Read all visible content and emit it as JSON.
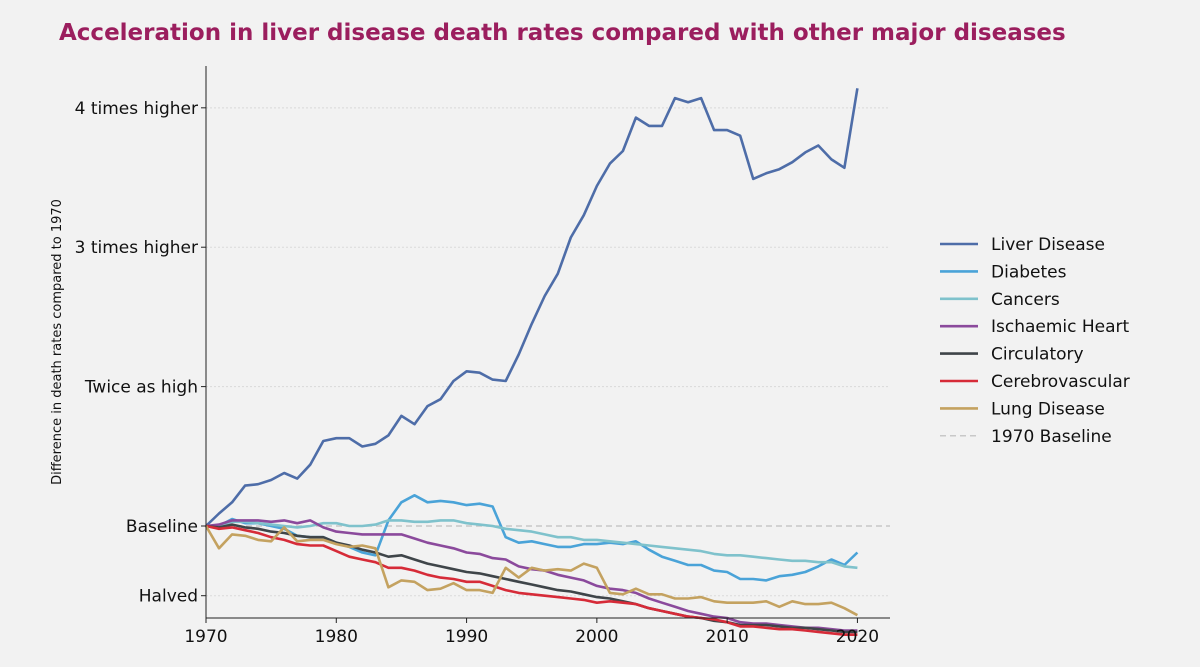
{
  "chart_data": {
    "type": "line",
    "title": "Acceleration in liver disease death rates compared with other major diseases",
    "xlabel": "",
    "ylabel": "Difference in death rates compared to 1970",
    "xlim": [
      1970,
      2022.5
    ],
    "ylim": [
      0.34,
      4.3
    ],
    "x_ticks": [
      1970,
      1980,
      1990,
      2000,
      2010,
      2020
    ],
    "y_ticks": [
      {
        "value": 0.5,
        "label": "Halved"
      },
      {
        "value": 1,
        "label": "Baseline"
      },
      {
        "value": 2,
        "label": "Twice as high"
      },
      {
        "value": 3,
        "label": "3 times higher"
      },
      {
        "value": 4,
        "label": "4 times higher"
      }
    ],
    "grid": "horizontal dotted",
    "legend_position": "right",
    "x": [
      1970,
      1971,
      1972,
      1973,
      1974,
      1975,
      1976,
      1977,
      1978,
      1979,
      1980,
      1981,
      1982,
      1983,
      1984,
      1985,
      1986,
      1987,
      1988,
      1989,
      1990,
      1991,
      1992,
      1993,
      1994,
      1995,
      1996,
      1997,
      1998,
      1999,
      2000,
      2001,
      2002,
      2003,
      2004,
      2005,
      2006,
      2007,
      2008,
      2009,
      2010,
      2011,
      2012,
      2013,
      2014,
      2015,
      2016,
      2017,
      2018,
      2019,
      2020
    ],
    "series": [
      {
        "name": "Liver Disease",
        "color": "#4e6da8",
        "values": [
          1.0,
          1.09,
          1.17,
          1.29,
          1.3,
          1.33,
          1.38,
          1.34,
          1.44,
          1.61,
          1.63,
          1.63,
          1.57,
          1.59,
          1.65,
          1.79,
          1.73,
          1.86,
          1.91,
          2.04,
          2.11,
          2.1,
          2.05,
          2.04,
          2.23,
          2.45,
          2.65,
          2.81,
          3.07,
          3.23,
          3.44,
          3.6,
          3.69,
          3.93,
          3.87,
          3.87,
          4.07,
          4.04,
          4.07,
          3.84,
          3.84,
          3.8,
          3.49,
          3.53,
          3.56,
          3.61,
          3.68,
          3.73,
          3.63,
          3.57,
          4.14
        ]
      },
      {
        "name": "Diabetes",
        "color": "#4aa3d8",
        "values": [
          1.0,
          1.0,
          1.05,
          1.02,
          1.02,
          1.0,
          0.98,
          0.93,
          0.92,
          0.92,
          0.88,
          0.85,
          0.81,
          0.79,
          1.04,
          1.17,
          1.22,
          1.17,
          1.18,
          1.17,
          1.15,
          1.16,
          1.14,
          0.92,
          0.88,
          0.89,
          0.87,
          0.85,
          0.85,
          0.87,
          0.87,
          0.88,
          0.87,
          0.89,
          0.83,
          0.78,
          0.75,
          0.72,
          0.72,
          0.68,
          0.67,
          0.62,
          0.62,
          0.61,
          0.64,
          0.65,
          0.67,
          0.71,
          0.76,
          0.72,
          0.81
        ]
      },
      {
        "name": "Cancers",
        "color": "#7fc2cc",
        "values": [
          1.0,
          1.0,
          1.03,
          1.03,
          1.02,
          1.01,
          1.0,
          0.99,
          1.0,
          1.02,
          1.02,
          1.0,
          1.0,
          1.01,
          1.04,
          1.04,
          1.03,
          1.03,
          1.04,
          1.04,
          1.02,
          1.01,
          1.0,
          0.98,
          0.97,
          0.96,
          0.94,
          0.92,
          0.92,
          0.9,
          0.9,
          0.89,
          0.88,
          0.87,
          0.86,
          0.85,
          0.84,
          0.83,
          0.82,
          0.8,
          0.79,
          0.79,
          0.78,
          0.77,
          0.76,
          0.75,
          0.75,
          0.74,
          0.74,
          0.71,
          0.7
        ]
      },
      {
        "name": "Ischaemic Heart",
        "color": "#8b4a9c",
        "values": [
          1.0,
          1.01,
          1.04,
          1.04,
          1.04,
          1.03,
          1.04,
          1.02,
          1.04,
          0.99,
          0.96,
          0.95,
          0.94,
          0.94,
          0.94,
          0.94,
          0.91,
          0.88,
          0.86,
          0.84,
          0.81,
          0.8,
          0.77,
          0.76,
          0.71,
          0.69,
          0.68,
          0.65,
          0.63,
          0.61,
          0.57,
          0.55,
          0.54,
          0.52,
          0.48,
          0.45,
          0.42,
          0.39,
          0.37,
          0.35,
          0.34,
          0.31,
          0.3,
          0.3,
          0.29,
          0.28,
          0.27,
          0.27,
          0.26,
          0.25,
          0.25
        ]
      },
      {
        "name": "Circulatory",
        "color": "#3f4549",
        "values": [
          1.0,
          0.99,
          1.01,
          0.99,
          0.98,
          0.96,
          0.95,
          0.93,
          0.92,
          0.92,
          0.88,
          0.86,
          0.83,
          0.81,
          0.78,
          0.79,
          0.76,
          0.73,
          0.71,
          0.69,
          0.67,
          0.66,
          0.64,
          0.62,
          0.6,
          0.58,
          0.56,
          0.54,
          0.53,
          0.51,
          0.49,
          0.48,
          0.46,
          0.44,
          0.41,
          0.39,
          0.37,
          0.35,
          0.34,
          0.32,
          0.31,
          0.29,
          0.29,
          0.29,
          0.28,
          0.27,
          0.27,
          0.26,
          0.25,
          0.24,
          0.24
        ]
      },
      {
        "name": "Cerebrovascular",
        "color": "#d62b38",
        "values": [
          1.0,
          0.98,
          0.99,
          0.97,
          0.95,
          0.92,
          0.9,
          0.87,
          0.86,
          0.86,
          0.82,
          0.78,
          0.76,
          0.74,
          0.7,
          0.7,
          0.68,
          0.65,
          0.63,
          0.62,
          0.6,
          0.6,
          0.57,
          0.54,
          0.52,
          0.51,
          0.5,
          0.49,
          0.48,
          0.47,
          0.45,
          0.46,
          0.45,
          0.44,
          0.41,
          0.39,
          0.37,
          0.35,
          0.34,
          0.33,
          0.31,
          0.28,
          0.28,
          0.27,
          0.26,
          0.26,
          0.25,
          0.24,
          0.23,
          0.22,
          0.22
        ]
      },
      {
        "name": "Lung Disease",
        "color": "#c4a260",
        "values": [
          1.0,
          0.84,
          0.94,
          0.93,
          0.9,
          0.89,
          0.99,
          0.89,
          0.9,
          0.9,
          0.87,
          0.85,
          0.86,
          0.84,
          0.56,
          0.61,
          0.6,
          0.54,
          0.55,
          0.59,
          0.54,
          0.54,
          0.52,
          0.7,
          0.63,
          0.7,
          0.68,
          0.69,
          0.68,
          0.73,
          0.7,
          0.52,
          0.51,
          0.55,
          0.51,
          0.51,
          0.48,
          0.48,
          0.49,
          0.46,
          0.45,
          0.45,
          0.45,
          0.46,
          0.42,
          0.46,
          0.44,
          0.44,
          0.45,
          0.41,
          0.36
        ]
      }
    ],
    "baseline": {
      "name": "1970 Baseline",
      "value": 1,
      "color": "#c8c8c8",
      "style": "dashed"
    }
  }
}
